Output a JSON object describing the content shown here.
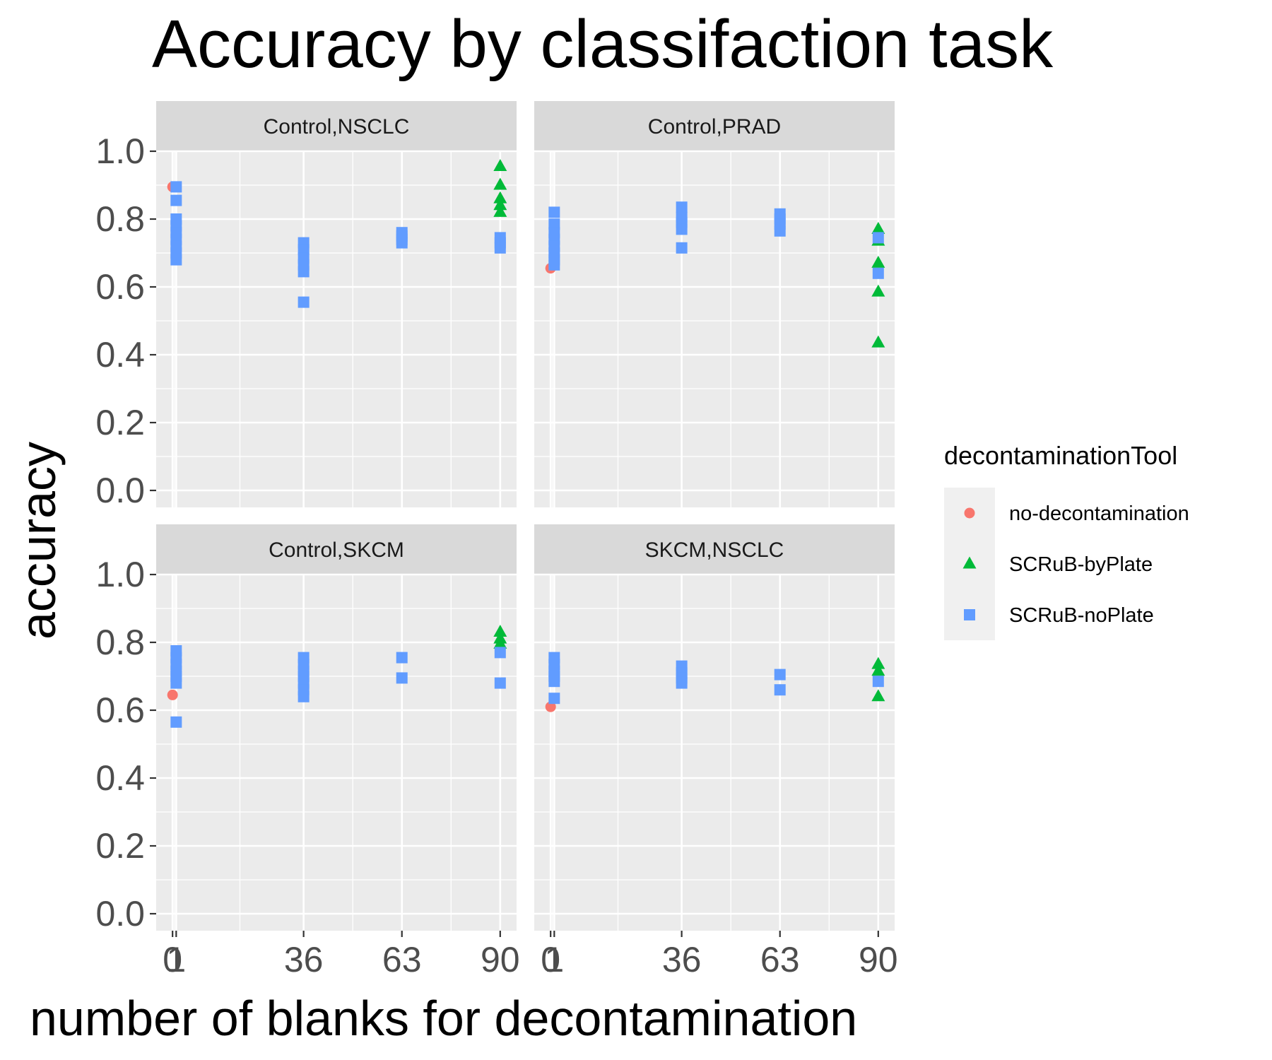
{
  "chart_data": {
    "type": "scatter",
    "title": "Accuracy by classifaction task",
    "xlabel": "number of blanks for decontamination",
    "ylabel": "accuracy",
    "x_ticks": [
      0,
      1,
      36,
      63,
      90
    ],
    "x_tick_labels": [
      "0",
      "1",
      "36",
      "63",
      "90"
    ],
    "xlim": [
      -4.5,
      94.5
    ],
    "y_ticks": [
      0.0,
      0.2,
      0.4,
      0.6,
      0.8,
      1.0
    ],
    "y_tick_labels": [
      "0.0",
      "0.2",
      "0.4",
      "0.6",
      "0.8",
      "1.0"
    ],
    "ylim": [
      -0.05,
      1.0
    ],
    "grid": true,
    "legend": {
      "title": "decontaminationTool",
      "position": "right",
      "entries": [
        {
          "name": "no-decontamination",
          "shape": "circle",
          "color": "#F8766D"
        },
        {
          "name": "SCRuB-byPlate",
          "shape": "triangle",
          "color": "#00BA38"
        },
        {
          "name": "SCRuB-noPlate",
          "shape": "square",
          "color": "#619CFF"
        }
      ]
    },
    "panels": [
      {
        "strip": "Control,NSCLC",
        "series": [
          {
            "name": "no-decontamination",
            "points": [
              [
                0,
                0.895
              ]
            ]
          },
          {
            "name": "SCRuB-byPlate",
            "points": [
              [
                90,
                0.955
              ],
              [
                90,
                0.9
              ],
              [
                90,
                0.86
              ],
              [
                90,
                0.84
              ],
              [
                90,
                0.82
              ]
            ]
          },
          {
            "name": "SCRuB-noPlate",
            "points": [
              [
                1,
                0.895
              ],
              [
                1,
                0.855
              ],
              [
                1,
                0.8
              ],
              [
                1,
                0.78
              ],
              [
                1,
                0.76
              ],
              [
                1,
                0.74
              ],
              [
                1,
                0.72
              ],
              [
                1,
                0.7
              ],
              [
                1,
                0.68
              ],
              [
                36,
                0.73
              ],
              [
                36,
                0.71
              ],
              [
                36,
                0.685
              ],
              [
                36,
                0.665
              ],
              [
                36,
                0.645
              ],
              [
                36,
                0.555
              ],
              [
                63,
                0.76
              ],
              [
                63,
                0.75
              ],
              [
                63,
                0.74
              ],
              [
                63,
                0.73
              ],
              [
                90,
                0.745
              ],
              [
                90,
                0.73
              ],
              [
                90,
                0.715
              ]
            ]
          }
        ]
      },
      {
        "strip": "Control,PRAD",
        "series": [
          {
            "name": "no-decontamination",
            "points": [
              [
                0,
                0.655
              ]
            ]
          },
          {
            "name": "SCRuB-byPlate",
            "points": [
              [
                90,
                0.77
              ],
              [
                90,
                0.735
              ],
              [
                90,
                0.67
              ],
              [
                90,
                0.585
              ],
              [
                90,
                0.435
              ]
            ]
          },
          {
            "name": "SCRuB-noPlate",
            "points": [
              [
                1,
                0.82
              ],
              [
                1,
                0.785
              ],
              [
                1,
                0.76
              ],
              [
                1,
                0.74
              ],
              [
                1,
                0.72
              ],
              [
                1,
                0.7
              ],
              [
                1,
                0.68
              ],
              [
                1,
                0.665
              ],
              [
                36,
                0.835
              ],
              [
                36,
                0.805
              ],
              [
                36,
                0.79
              ],
              [
                36,
                0.77
              ],
              [
                36,
                0.715
              ],
              [
                63,
                0.815
              ],
              [
                63,
                0.8
              ],
              [
                63,
                0.785
              ],
              [
                63,
                0.765
              ],
              [
                90,
                0.745
              ],
              [
                90,
                0.64
              ]
            ]
          }
        ]
      },
      {
        "strip": "Control,SKCM",
        "series": [
          {
            "name": "no-decontamination",
            "points": [
              [
                0,
                0.645
              ]
            ]
          },
          {
            "name": "SCRuB-byPlate",
            "points": [
              [
                90,
                0.83
              ],
              [
                90,
                0.81
              ],
              [
                90,
                0.795
              ]
            ]
          },
          {
            "name": "SCRuB-noPlate",
            "points": [
              [
                1,
                0.775
              ],
              [
                1,
                0.755
              ],
              [
                1,
                0.735
              ],
              [
                1,
                0.715
              ],
              [
                1,
                0.7
              ],
              [
                1,
                0.68
              ],
              [
                1,
                0.565
              ],
              [
                36,
                0.755
              ],
              [
                36,
                0.735
              ],
              [
                36,
                0.715
              ],
              [
                36,
                0.7
              ],
              [
                36,
                0.68
              ],
              [
                36,
                0.66
              ],
              [
                36,
                0.64
              ],
              [
                63,
                0.755
              ],
              [
                63,
                0.695
              ],
              [
                90,
                0.77
              ],
              [
                90,
                0.68
              ]
            ]
          }
        ]
      },
      {
        "strip": "SKCM,NSCLC",
        "series": [
          {
            "name": "no-decontamination",
            "points": [
              [
                0,
                0.61
              ]
            ]
          },
          {
            "name": "SCRuB-byPlate",
            "points": [
              [
                90,
                0.735
              ],
              [
                90,
                0.715
              ],
              [
                90,
                0.64
              ]
            ]
          },
          {
            "name": "SCRuB-noPlate",
            "points": [
              [
                1,
                0.755
              ],
              [
                1,
                0.735
              ],
              [
                1,
                0.715
              ],
              [
                1,
                0.7
              ],
              [
                1,
                0.685
              ],
              [
                1,
                0.635
              ],
              [
                36,
                0.73
              ],
              [
                36,
                0.71
              ],
              [
                36,
                0.695
              ],
              [
                36,
                0.68
              ],
              [
                63,
                0.705
              ],
              [
                63,
                0.66
              ],
              [
                90,
                0.685
              ]
            ]
          }
        ]
      }
    ]
  }
}
